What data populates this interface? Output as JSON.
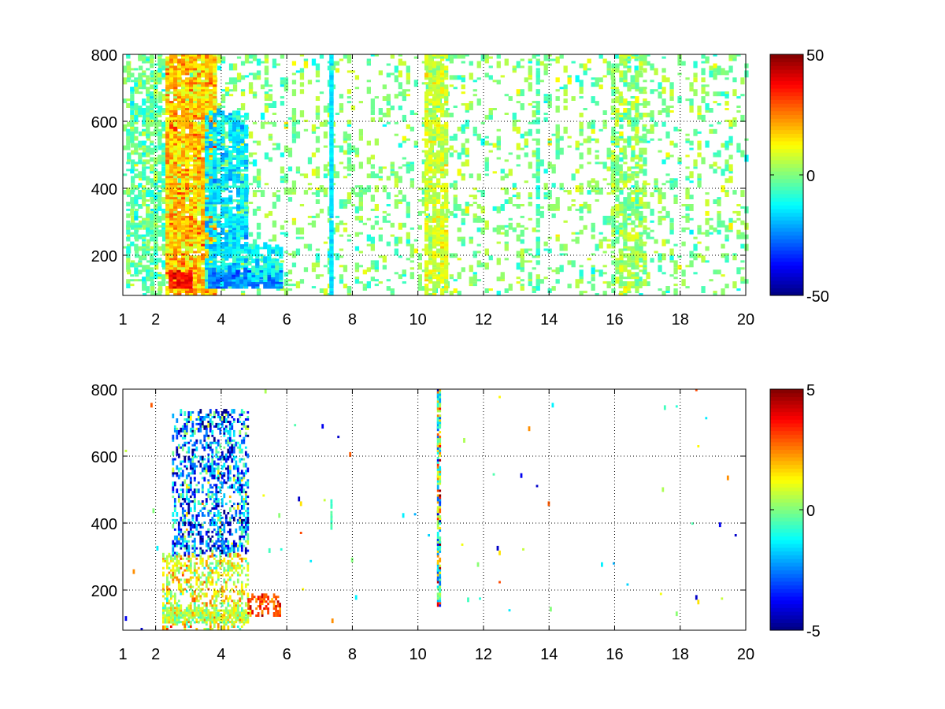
{
  "chart_data": [
    {
      "type": "heatmap",
      "title": "",
      "xlabel": "",
      "ylabel": "",
      "xlim": [
        1,
        20
      ],
      "ylim": [
        80,
        800
      ],
      "xticks": [
        "1",
        "2",
        "4",
        "6",
        "8",
        "10",
        "12",
        "14",
        "16",
        "18",
        "20"
      ],
      "yticks": [
        "200",
        "400",
        "600",
        "800"
      ],
      "grid": true,
      "colormap": "jet",
      "clim": [
        -50,
        50
      ],
      "colorbar_ticks": [
        "50",
        "0",
        "-50"
      ],
      "cell_size": [
        0.12,
        7
      ],
      "background": {
        "x": [
          1,
          20
        ],
        "y": [
          80,
          800
        ],
        "value": 0,
        "spread": 8,
        "density": 0.13
      },
      "clusters": [
        {
          "x": [
            1.1,
            2.2
          ],
          "y": [
            80,
            800
          ],
          "value": -3,
          "spread": 8,
          "density": 0.35
        },
        {
          "x": [
            2.3,
            3.8
          ],
          "y": [
            80,
            800
          ],
          "value": 18,
          "spread": 10,
          "density": 0.85
        },
        {
          "x": [
            3.5,
            4.8
          ],
          "y": [
            100,
            620
          ],
          "value": -14,
          "spread": 8,
          "density": 0.6
        },
        {
          "x": [
            3.6,
            5.8
          ],
          "y": [
            100,
            150
          ],
          "value": -25,
          "spread": 6,
          "density": 0.8
        },
        {
          "x": [
            2.4,
            3.1
          ],
          "y": [
            100,
            150
          ],
          "value": 38,
          "spread": 6,
          "density": 0.9
        },
        {
          "x": [
            4.8,
            5.8
          ],
          "y": [
            120,
            220
          ],
          "value": -12,
          "spread": 6,
          "density": 0.5
        },
        {
          "x": [
            10.2,
            10.9
          ],
          "y": [
            80,
            800
          ],
          "value": 8,
          "spread": 6,
          "density": 0.65
        },
        {
          "x": [
            7.3,
            7.4
          ],
          "y": [
            80,
            800
          ],
          "value": -15,
          "spread": 3,
          "density": 0.9
        },
        {
          "x": [
            15.9,
            16.9
          ],
          "y": [
            80,
            800
          ],
          "value": 2,
          "spread": 8,
          "density": 0.35
        },
        {
          "x": [
            13.6,
            13.7
          ],
          "y": [
            80,
            800
          ],
          "value": -5,
          "spread": 5,
          "density": 0.4
        }
      ]
    },
    {
      "type": "heatmap",
      "title": "",
      "xlabel": "",
      "ylabel": "",
      "xlim": [
        1,
        20
      ],
      "ylim": [
        80,
        800
      ],
      "xticks": [
        "1",
        "2",
        "4",
        "6",
        "8",
        "10",
        "12",
        "14",
        "16",
        "18",
        "20"
      ],
      "yticks": [
        "200",
        "400",
        "600",
        "800"
      ],
      "grid": true,
      "colormap": "jet",
      "clim": [
        -5,
        5
      ],
      "colorbar_ticks": [
        "5",
        "0",
        "-5"
      ],
      "cell_size": [
        0.06,
        7
      ],
      "background": {
        "x": [
          1,
          20
        ],
        "y": [
          80,
          800
        ],
        "value": 0,
        "spread": 3,
        "density": 0.0015
      },
      "clusters": [
        {
          "x": [
            2.5,
            4.8
          ],
          "y": [
            300,
            730
          ],
          "value": -2.5,
          "spread": 2.5,
          "density": 0.35
        },
        {
          "x": [
            2.2,
            4.8
          ],
          "y": [
            80,
            300
          ],
          "value": 1,
          "spread": 1.5,
          "density": 0.35
        },
        {
          "x": [
            2.2,
            4.8
          ],
          "y": [
            100,
            140
          ],
          "value": 0.5,
          "spread": 1,
          "density": 0.7
        },
        {
          "x": [
            4.8,
            5.8
          ],
          "y": [
            120,
            180
          ],
          "value": 3,
          "spread": 1,
          "density": 0.4
        },
        {
          "x": [
            10.58,
            10.66
          ],
          "y": [
            150,
            800
          ],
          "value": 0,
          "spread": 3,
          "density": 0.8
        },
        {
          "x": [
            7.33,
            7.38
          ],
          "y": [
            380,
            460
          ],
          "value": -0.5,
          "spread": 0.3,
          "density": 0.9
        }
      ]
    }
  ]
}
